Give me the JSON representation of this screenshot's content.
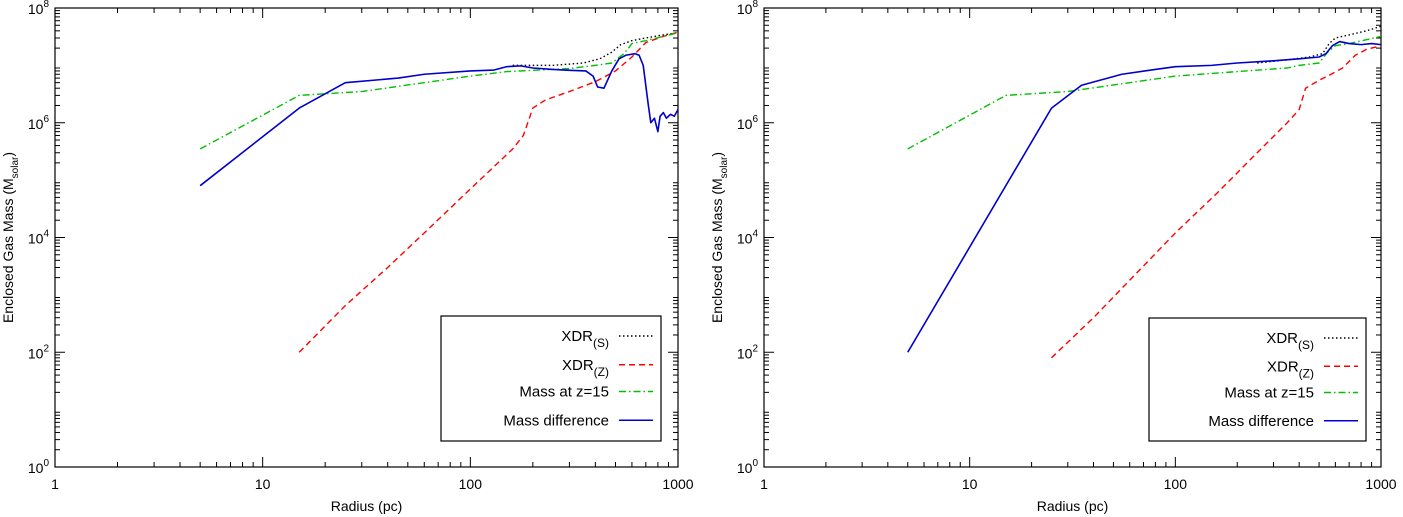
{
  "chart_data": [
    {
      "type": "line",
      "xscale": "log",
      "yscale": "log",
      "xlabel": "Radius (pc)",
      "ylabel": "Enclosed Gas Mass (M",
      "ylabel_sub": "solar",
      "ylabel_close": ")",
      "xlim": [
        1,
        1000
      ],
      "ylim": [
        1,
        100000000
      ],
      "xticks": [
        {
          "value": 1,
          "label": "1"
        },
        {
          "value": 10,
          "label": "10"
        },
        {
          "value": 100,
          "label": "100"
        },
        {
          "value": 1000,
          "label": "1000"
        }
      ],
      "yticks": [
        {
          "value": 1,
          "base": "10",
          "exp": "0"
        },
        {
          "value": 100,
          "base": "10",
          "exp": "2"
        },
        {
          "value": 10000,
          "base": "10",
          "exp": "4"
        },
        {
          "value": 1000000,
          "base": "10",
          "exp": "6"
        },
        {
          "value": 100000000,
          "base": "10",
          "exp": "8"
        }
      ],
      "legend_position": "bottom-right",
      "series": [
        {
          "name": "XDR",
          "sub": "(S)",
          "color": "#000000",
          "dash": "dotted",
          "points": [
            [
              160,
              10000000
            ],
            [
              250,
              10000000
            ],
            [
              350,
              11000000
            ],
            [
              420,
              13000000
            ],
            [
              480,
              17000000
            ],
            [
              530,
              23000000
            ],
            [
              600,
              27000000
            ],
            [
              700,
              30000000
            ],
            [
              850,
              34000000
            ],
            [
              1000,
              37000000
            ]
          ]
        },
        {
          "name": "XDR",
          "sub": "(Z)",
          "color": "#ff0000",
          "dash": "dashed",
          "points": [
            [
              15,
              100
            ],
            [
              25,
              650
            ],
            [
              40,
              3000
            ],
            [
              60,
              12000
            ],
            [
              100,
              70000
            ],
            [
              160,
              350000
            ],
            [
              180,
              600000
            ],
            [
              200,
              1800000
            ],
            [
              230,
              2500000
            ],
            [
              300,
              3500000
            ],
            [
              400,
              5200000
            ],
            [
              500,
              8000000
            ],
            [
              600,
              14000000
            ],
            [
              700,
              25000000
            ],
            [
              850,
              32000000
            ],
            [
              1000,
              38000000
            ]
          ]
        },
        {
          "name": "Mass at z=15",
          "sub": "",
          "color": "#00c000",
          "dash": "dashdot",
          "points": [
            [
              5,
              350000
            ],
            [
              15,
              3000000
            ],
            [
              30,
              3500000
            ],
            [
              60,
              5000000
            ],
            [
              100,
              6500000
            ],
            [
              150,
              7800000
            ],
            [
              200,
              8200000
            ],
            [
              300,
              8800000
            ],
            [
              400,
              10000000
            ],
            [
              480,
              11000000
            ],
            [
              550,
              16000000
            ],
            [
              600,
              24000000
            ],
            [
              700,
              27000000
            ],
            [
              850,
              32000000
            ],
            [
              1000,
              37000000
            ]
          ]
        },
        {
          "name": "Mass difference",
          "sub": "",
          "color": "#0000cc",
          "dash": "solid",
          "points": [
            [
              5,
              80000
            ],
            [
              15,
              1800000
            ],
            [
              25,
              5000000
            ],
            [
              45,
              6000000
            ],
            [
              60,
              7000000
            ],
            [
              100,
              8000000
            ],
            [
              130,
              8300000
            ],
            [
              150,
              9500000
            ],
            [
              175,
              9800000
            ],
            [
              200,
              9000000
            ],
            [
              250,
              8500000
            ],
            [
              300,
              8200000
            ],
            [
              360,
              8000000
            ],
            [
              390,
              6500000
            ],
            [
              410,
              4200000
            ],
            [
              440,
              4000000
            ],
            [
              480,
              8000000
            ],
            [
              520,
              13000000
            ],
            [
              560,
              15000000
            ],
            [
              620,
              16000000
            ],
            [
              650,
              15000000
            ],
            [
              680,
              10000000
            ],
            [
              720,
              2000000
            ],
            [
              740,
              1000000
            ],
            [
              770,
              1200000
            ],
            [
              800,
              700000
            ],
            [
              820,
              1300000
            ],
            [
              850,
              1500000
            ],
            [
              880,
              1200000
            ],
            [
              920,
              1400000
            ],
            [
              960,
              1300000
            ],
            [
              1000,
              1700000
            ]
          ]
        }
      ]
    },
    {
      "type": "line",
      "xscale": "log",
      "yscale": "log",
      "xlabel": "Radius (pc)",
      "ylabel": "Enclosed Gas Mass (M",
      "ylabel_sub": "solar",
      "ylabel_close": ")",
      "xlim": [
        1,
        1000
      ],
      "ylim": [
        1,
        100000000
      ],
      "xticks": [
        {
          "value": 1,
          "label": "1"
        },
        {
          "value": 10,
          "label": "10"
        },
        {
          "value": 100,
          "label": "100"
        },
        {
          "value": 1000,
          "label": "1000"
        }
      ],
      "yticks": [
        {
          "value": 1,
          "base": "10",
          "exp": "0"
        },
        {
          "value": 100,
          "base": "10",
          "exp": "2"
        },
        {
          "value": 10000,
          "base": "10",
          "exp": "4"
        },
        {
          "value": 1000000,
          "base": "10",
          "exp": "6"
        },
        {
          "value": 100000000,
          "base": "10",
          "exp": "8"
        }
      ],
      "legend_position": "bottom-right",
      "series": [
        {
          "name": "XDR",
          "sub": "(S)",
          "color": "#000000",
          "dash": "dotted",
          "points": [
            [
              250,
              11000000
            ],
            [
              350,
              12500000
            ],
            [
              450,
              14000000
            ],
            [
              520,
              16000000
            ],
            [
              560,
              24000000
            ],
            [
              600,
              30000000
            ],
            [
              700,
              34000000
            ],
            [
              850,
              40000000
            ],
            [
              1000,
              48000000
            ]
          ]
        },
        {
          "name": "XDR",
          "sub": "(Z)",
          "color": "#ff0000",
          "dash": "dashed",
          "points": [
            [
              25,
              80
            ],
            [
              40,
              400
            ],
            [
              60,
              1800
            ],
            [
              100,
              12000
            ],
            [
              160,
              60000
            ],
            [
              250,
              300000
            ],
            [
              350,
              1000000
            ],
            [
              400,
              1700000
            ],
            [
              430,
              4000000
            ],
            [
              500,
              5500000
            ],
            [
              550,
              6500000
            ],
            [
              650,
              9000000
            ],
            [
              750,
              15000000
            ],
            [
              850,
              19000000
            ],
            [
              1000,
              22000000
            ]
          ]
        },
        {
          "name": "Mass at z=15",
          "sub": "",
          "color": "#00c000",
          "dash": "dashdot",
          "points": [
            [
              5,
              350000
            ],
            [
              15,
              3000000
            ],
            [
              30,
              3500000
            ],
            [
              60,
              5000000
            ],
            [
              100,
              6500000
            ],
            [
              200,
              7800000
            ],
            [
              350,
              9000000
            ],
            [
              400,
              10000000
            ],
            [
              500,
              11000000
            ],
            [
              550,
              17000000
            ],
            [
              600,
              22000000
            ],
            [
              700,
              24000000
            ],
            [
              850,
              28000000
            ],
            [
              1000,
              32000000
            ]
          ]
        },
        {
          "name": "Mass difference",
          "sub": "",
          "color": "#0000cc",
          "dash": "solid",
          "points": [
            [
              5,
              100
            ],
            [
              25,
              1800000
            ],
            [
              35,
              4500000
            ],
            [
              55,
              7000000
            ],
            [
              80,
              8500000
            ],
            [
              100,
              9500000
            ],
            [
              150,
              10000000
            ],
            [
              200,
              11000000
            ],
            [
              300,
              12000000
            ],
            [
              400,
              13000000
            ],
            [
              500,
              14000000
            ],
            [
              540,
              16000000
            ],
            [
              580,
              22000000
            ],
            [
              630,
              26000000
            ],
            [
              700,
              24000000
            ],
            [
              800,
              23000000
            ],
            [
              900,
              24000000
            ],
            [
              1000,
              23000000
            ]
          ]
        }
      ]
    }
  ]
}
